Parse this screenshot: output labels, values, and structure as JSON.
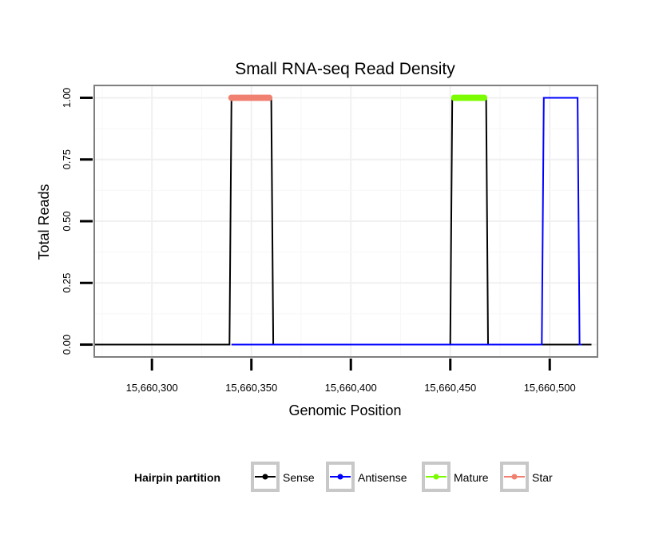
{
  "chart_data": {
    "type": "line",
    "title": "Small RNA-seq Read Density",
    "xlabel": "Genomic Position",
    "ylabel": "Total Reads",
    "xlim": [
      15660271,
      15660524
    ],
    "ylim": [
      -0.05,
      1.05
    ],
    "x_ticks": [
      {
        "value": 15660300,
        "label": "15,660,300"
      },
      {
        "value": 15660350,
        "label": "15,660,350"
      },
      {
        "value": 15660400,
        "label": "15,660,400"
      },
      {
        "value": 15660450,
        "label": "15,660,450"
      },
      {
        "value": 15660500,
        "label": "15,660,500"
      }
    ],
    "y_ticks": [
      {
        "value": 0.0,
        "label": "0.00"
      },
      {
        "value": 0.25,
        "label": "0.25"
      },
      {
        "value": 0.5,
        "label": "0.50"
      },
      {
        "value": 0.75,
        "label": "0.75"
      },
      {
        "value": 1.0,
        "label": "1.00"
      }
    ],
    "grid": true,
    "legend": {
      "title": "Hairpin partition",
      "position": "bottom"
    },
    "series": [
      {
        "name": "Sense",
        "color": "#000000",
        "kind": "line",
        "x": [
          15660271,
          15660339,
          15660340,
          15660360,
          15660361,
          15660450,
          15660451,
          15660468,
          15660469,
          15660521
        ],
        "y": [
          0,
          0,
          1,
          1,
          0,
          0,
          1,
          1,
          0,
          0
        ]
      },
      {
        "name": "Antisense",
        "color": "#0000ff",
        "kind": "line",
        "x": [
          15660340,
          15660361,
          15660451,
          15660469,
          15660496,
          15660497,
          15660514,
          15660515,
          15660516
        ],
        "y": [
          0,
          0,
          0,
          0,
          0,
          1,
          1,
          0,
          0
        ]
      },
      {
        "name": "Mature",
        "color": "#7cfc00",
        "kind": "points",
        "x_range": [
          15660452,
          15660467
        ],
        "y": 1
      },
      {
        "name": "Star",
        "color": "#f08070",
        "kind": "points",
        "x_range": [
          15660340,
          15660359
        ],
        "y": 1
      }
    ]
  }
}
